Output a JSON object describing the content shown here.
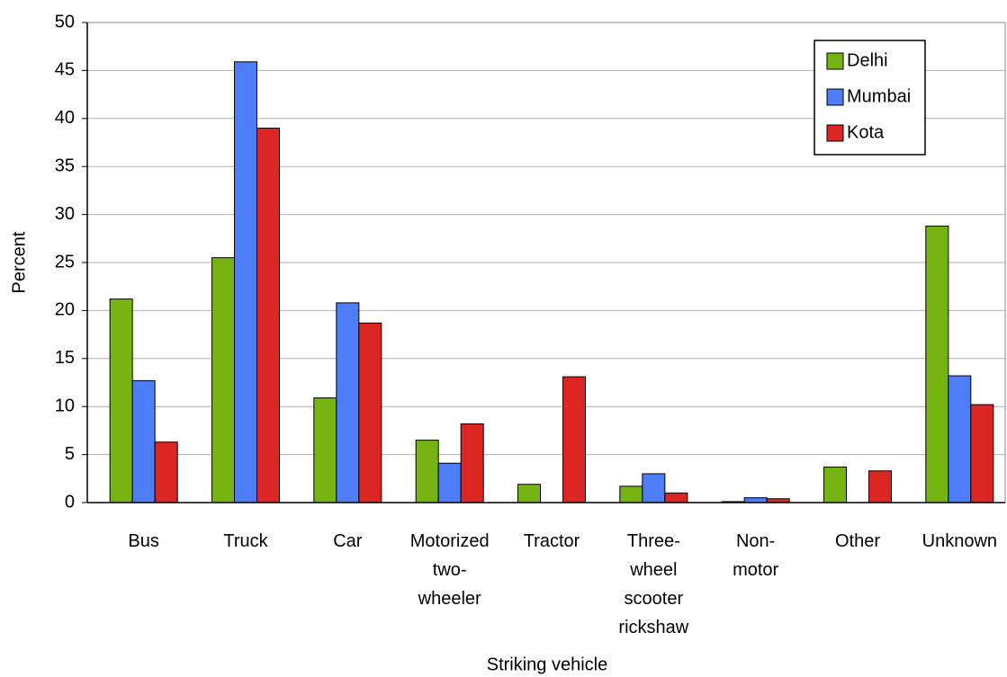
{
  "chart_data": {
    "type": "bar",
    "x_label": "Striking vehicle",
    "y_label": "Percent",
    "categories": [
      [
        "Bus"
      ],
      [
        "Truck"
      ],
      [
        "Car"
      ],
      [
        "Motorized",
        "two-",
        "wheeler"
      ],
      [
        "Tractor"
      ],
      [
        "Three-",
        "wheel",
        "scooter",
        "rickshaw"
      ],
      [
        "Non-",
        "motor"
      ],
      [
        "Other"
      ],
      [
        "Unknown"
      ]
    ],
    "series": [
      {
        "name": "Delhi",
        "color": "#76b414",
        "values": [
          21.2,
          25.5,
          10.9,
          6.5,
          1.9,
          1.7,
          0.1,
          3.7,
          28.8
        ]
      },
      {
        "name": "Mumbai",
        "color": "#4d7ef7",
        "values": [
          12.7,
          45.9,
          20.8,
          4.1,
          null,
          3.0,
          0.5,
          null,
          13.2
        ]
      },
      {
        "name": "Kota",
        "color": "#dc2624",
        "values": [
          6.3,
          39.0,
          18.7,
          8.2,
          13.1,
          1.0,
          0.4,
          3.3,
          10.2
        ]
      }
    ],
    "ylim": [
      0,
      50
    ],
    "yticks": [
      0,
      5,
      10,
      15,
      20,
      25,
      30,
      35,
      40,
      45,
      50
    ],
    "grid": true,
    "legend": "top-right"
  }
}
